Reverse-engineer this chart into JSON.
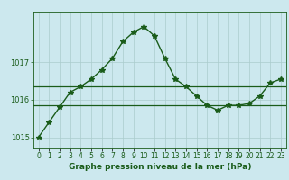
{
  "xlabel": "Graphe pression niveau de la mer (hPa)",
  "ylabel": "",
  "background_color": "#cce8ee",
  "grid_color": "#aacccc",
  "line_color": "#1a5c1a",
  "text_color": "#1a5c1a",
  "hours": [
    0,
    1,
    2,
    3,
    4,
    5,
    6,
    7,
    8,
    9,
    10,
    11,
    12,
    13,
    14,
    15,
    16,
    17,
    18,
    19,
    20,
    21,
    22,
    23
  ],
  "pressure": [
    1015.0,
    1015.4,
    1015.8,
    1016.2,
    1016.35,
    1016.55,
    1016.8,
    1017.1,
    1017.55,
    1017.8,
    1017.95,
    1017.7,
    1017.1,
    1016.55,
    1016.35,
    1016.1,
    1015.85,
    1015.72,
    1015.85,
    1015.85,
    1015.9,
    1016.1,
    1016.45,
    1016.55
  ],
  "ref_line1": 1016.35,
  "ref_line2": 1015.85,
  "ylim_min": 1014.7,
  "ylim_max": 1018.35,
  "yticks": [
    1015,
    1016,
    1017
  ],
  "marker": "*",
  "marker_size": 4,
  "line_width": 1.0,
  "xlabel_fontsize": 6.5,
  "tick_fontsize": 6.0,
  "fig_width": 3.2,
  "fig_height": 2.0,
  "dpi": 100
}
